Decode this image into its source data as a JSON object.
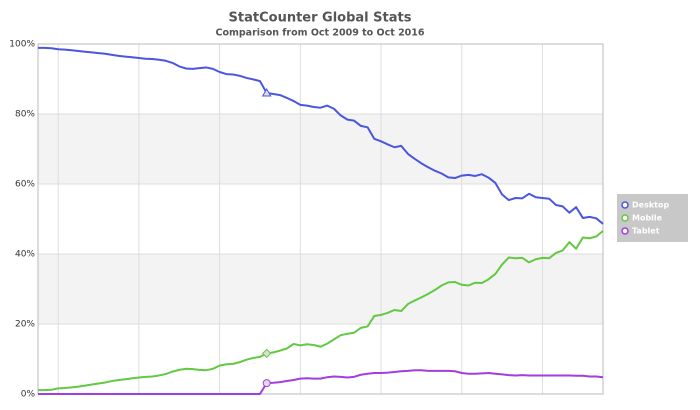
{
  "chart_data": {
    "type": "line",
    "title": "StatCounter Global Stats",
    "subtitle": "Comparison from Oct 2009 to Oct 2016",
    "categories": [
      null,
      null,
      null,
      null,
      null,
      null,
      null,
      null,
      null,
      null,
      null,
      null,
      null,
      null,
      null,
      null,
      null,
      null,
      null,
      null,
      null,
      null,
      null,
      null,
      null,
      null,
      null,
      null,
      null,
      null,
      null,
      null,
      null,
      null,
      null,
      null,
      null,
      null,
      null,
      null,
      null,
      null,
      null,
      null,
      null,
      null,
      null,
      null,
      null,
      null,
      null,
      null,
      null,
      null,
      null,
      null,
      null,
      null,
      null,
      null,
      null,
      null,
      null,
      null,
      null,
      null,
      null,
      null,
      null,
      null,
      null,
      null,
      null,
      null,
      null,
      null,
      null,
      null,
      null,
      null,
      null,
      null,
      null,
      null,
      null
    ],
    "series": [
      {
        "name": "Desktop",
        "color": "#4a56e0",
        "values": [
          98.9,
          98.9,
          98.8,
          98.5,
          98.4,
          98.2,
          98.0,
          97.8,
          97.6,
          97.4,
          97.2,
          96.9,
          96.6,
          96.4,
          96.2,
          96.0,
          95.8,
          95.7,
          95.5,
          95.2,
          94.6,
          93.6,
          93.0,
          92.9,
          93.1,
          93.3,
          92.9,
          92.0,
          91.4,
          91.3,
          90.9,
          90.3,
          89.9,
          89.4,
          86.0,
          85.7,
          85.4,
          84.6,
          83.7,
          82.6,
          82.4,
          82.0,
          81.8,
          82.4,
          81.5,
          79.6,
          78.4,
          78.1,
          76.6,
          76.2,
          72.9,
          72.2,
          71.3,
          70.5,
          70.9,
          68.6,
          67.2,
          65.9,
          64.8,
          63.8,
          63.0,
          61.9,
          61.7,
          62.4,
          62.6,
          62.3,
          62.8,
          61.8,
          60.3,
          57.0,
          55.4,
          56.0,
          55.9,
          57.2,
          56.2,
          56.0,
          55.8,
          54.0,
          53.6,
          51.8,
          53.4,
          50.3,
          50.6,
          50.2,
          48.6
        ]
      },
      {
        "name": "Mobile",
        "color": "#62c943",
        "values": [
          1.1,
          1.1,
          1.2,
          1.6,
          1.7,
          1.9,
          2.1,
          2.4,
          2.7,
          3.0,
          3.3,
          3.7,
          4.0,
          4.2,
          4.5,
          4.7,
          4.9,
          5.0,
          5.3,
          5.7,
          6.4,
          6.9,
          7.2,
          7.1,
          6.9,
          6.8,
          7.2,
          8.1,
          8.5,
          8.6,
          9.1,
          9.8,
          10.3,
          10.6,
          11.6,
          11.9,
          12.4,
          13.0,
          14.3,
          13.9,
          14.2,
          14.0,
          13.5,
          14.4,
          15.6,
          16.8,
          17.2,
          17.5,
          18.9,
          19.3,
          22.3,
          22.6,
          23.2,
          24.0,
          23.7,
          25.7,
          26.7,
          27.6,
          28.6,
          29.7,
          31.0,
          31.9,
          32.0,
          31.2,
          31.0,
          31.8,
          31.7,
          32.8,
          34.3,
          37.0,
          39.0,
          38.8,
          38.9,
          37.6,
          38.5,
          38.9,
          38.8,
          40.3,
          41.0,
          43.4,
          41.5,
          44.7,
          44.5,
          45.0,
          46.6
        ]
      },
      {
        "name": "Tablet",
        "color": "#a23ee0",
        "values": [
          0,
          0,
          0,
          0,
          0,
          0,
          0,
          0,
          0,
          0,
          0,
          0,
          0,
          0,
          0,
          0,
          0,
          0,
          0,
          0,
          0,
          0,
          0,
          0,
          0,
          0,
          0,
          0,
          0,
          0,
          0,
          0,
          0,
          0,
          3.1,
          3.2,
          3.4,
          3.7,
          4.0,
          4.4,
          4.5,
          4.4,
          4.4,
          4.8,
          5.0,
          4.9,
          4.7,
          4.9,
          5.5,
          5.8,
          6.0,
          6.0,
          6.1,
          6.3,
          6.5,
          6.6,
          6.8,
          6.8,
          6.6,
          6.6,
          6.6,
          6.6,
          6.5,
          6.0,
          5.8,
          5.8,
          5.9,
          6.0,
          5.8,
          5.6,
          5.4,
          5.3,
          5.4,
          5.3,
          5.3,
          5.3,
          5.3,
          5.3,
          5.3,
          5.3,
          5.2,
          5.2,
          5.0,
          5.0,
          4.8
        ]
      }
    ],
    "ylim": [
      0,
      100
    ],
    "yticks": [
      {
        "value": 0,
        "label": "0%"
      },
      {
        "value": 20,
        "label": "20%"
      },
      {
        "value": 40,
        "label": "40%"
      },
      {
        "value": 60,
        "label": "60%"
      },
      {
        "value": 80,
        "label": "80%"
      },
      {
        "value": 100,
        "label": "100%"
      }
    ],
    "grid": true,
    "legend": "right"
  }
}
